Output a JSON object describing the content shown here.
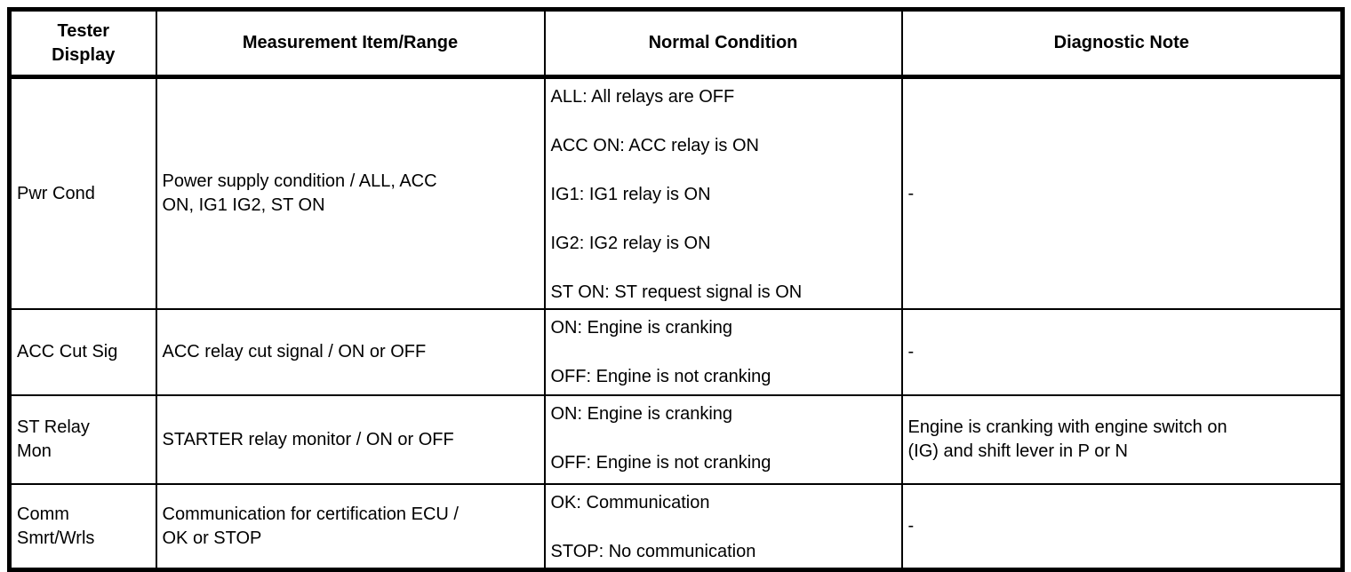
{
  "colors": {
    "background": "#ffffff",
    "border": "#000000",
    "text": "#000000"
  },
  "table": {
    "headers": {
      "tester_display": "Tester\nDisplay",
      "measurement": "Measurement Item/Range",
      "normal_condition": "Normal Condition",
      "diagnostic_note": "Diagnostic Note"
    },
    "rows": [
      {
        "tester_display": "Pwr Cond",
        "measurement": "Power supply condition / ALL, ACC\nON, IG1 IG2, ST ON",
        "normal_conditions": [
          "ALL: All relays are OFF",
          "ACC ON: ACC relay is ON",
          "IG1: IG1 relay is ON",
          "IG2: IG2 relay is ON",
          "ST ON: ST request signal is ON"
        ],
        "diagnostic_note": "-"
      },
      {
        "tester_display": "ACC Cut Sig",
        "measurement": "ACC relay cut signal / ON or OFF",
        "normal_conditions": [
          "ON: Engine is cranking",
          "OFF: Engine is not cranking"
        ],
        "diagnostic_note": "-"
      },
      {
        "tester_display": "ST Relay\nMon",
        "measurement": "STARTER relay monitor / ON or OFF",
        "normal_conditions": [
          "ON: Engine is cranking",
          "OFF: Engine is not cranking"
        ],
        "diagnostic_note": "Engine is cranking with engine switch on\n(IG) and shift lever in P or N"
      },
      {
        "tester_display": "Comm\nSmrt/Wrls",
        "measurement": "Communication for certification ECU /\nOK or STOP",
        "normal_conditions": [
          "OK: Communication",
          "STOP: No communication"
        ],
        "diagnostic_note": "-"
      }
    ]
  }
}
